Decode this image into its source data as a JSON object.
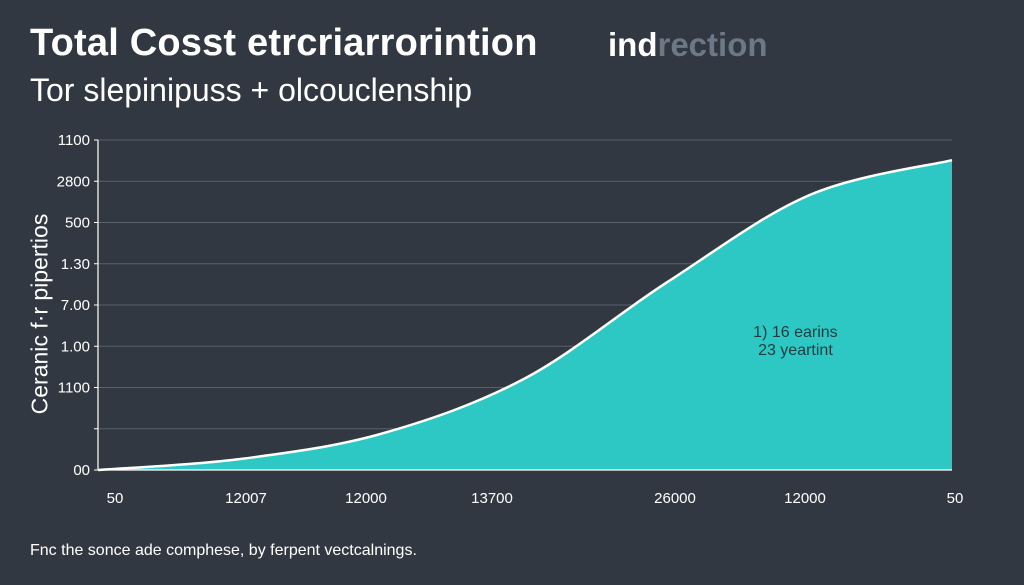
{
  "header": {
    "title": "Total Cosst etrcriarrorintion",
    "title_tag_part1": "ind",
    "title_tag_part2": "rection",
    "subtitle": "Tor slepinipuss + olcouclenship"
  },
  "footnote": "Fnc the sonce ade comphese, by ferpent vectcalnings.",
  "colors": {
    "background": "#323842",
    "area_fill": "#2ec8c4",
    "line": "#ffffff",
    "grid": "#5a616b",
    "muted_title": "#6d7886"
  },
  "chart_data": {
    "type": "area",
    "ylabel": "Ceranic f·r pipertios",
    "xlabel": "",
    "x_tick_labels": [
      "50",
      "12007",
      "12000",
      "13700",
      "26000",
      "12000",
      "50"
    ],
    "y_tick_labels": [
      "1100",
      "2800",
      "500",
      "1.30",
      "7.00",
      "1.00",
      "1100",
      "",
      "00"
    ],
    "grid": true,
    "x": [
      0,
      1,
      2,
      3,
      4,
      5,
      6
    ],
    "values": [
      0,
      12,
      40,
      100,
      205,
      300,
      338
    ],
    "xlim": [
      0,
      6
    ],
    "ylim": [
      0,
      360
    ],
    "annotation": {
      "lines": [
        "1) 16 earins",
        "23 yeartint"
      ],
      "x": 4.9,
      "y": 145
    }
  }
}
